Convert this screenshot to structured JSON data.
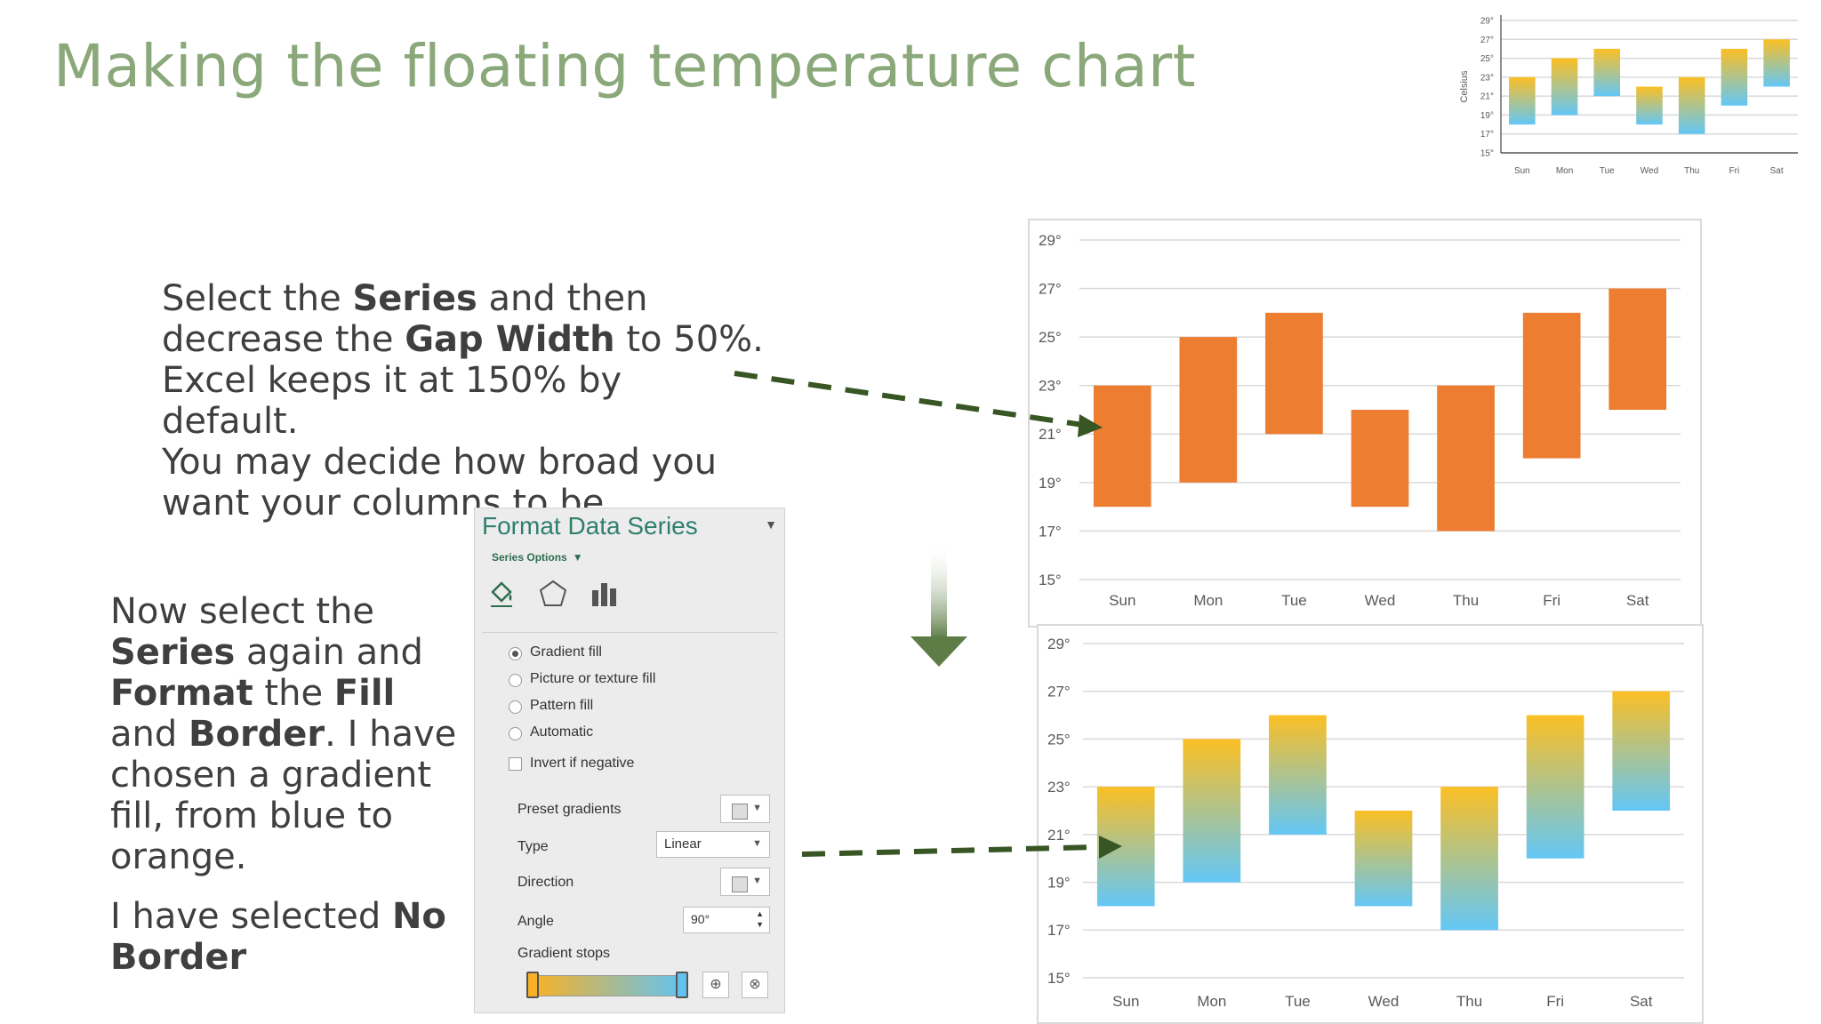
{
  "title": "Making the floating temperature chart",
  "para1": {
    "l1a": "Select the ",
    "l1b": "Series",
    "l1c": " and then",
    "l2a": "decrease the ",
    "l2b": "Gap Width",
    "l2c": " to 50%.",
    "l3": "Excel keeps it at 150% by default.",
    "l4": "You may decide how broad you",
    "l5": "want your columns to be."
  },
  "para2": {
    "l1": "Now select the",
    "l2a": "Series",
    "l2b": " again and",
    "l3a": "Format",
    "l3b": " the ",
    "l3c": "Fill",
    "l4a": "and ",
    "l4b": "Border",
    "l4c": ". I have",
    "l5": "chosen a gradient",
    "l6": "fill, from blue to",
    "l7": "orange."
  },
  "para3": {
    "l1a": "I have selected ",
    "l1b": "No",
    "l2": "Border"
  },
  "panel": {
    "title": "Format Data Series",
    "series_options": "Series Options",
    "fill_options": [
      "Gradient fill",
      "Picture or texture fill",
      "Pattern fill",
      "Automatic"
    ],
    "invert": "Invert if negative",
    "preset": "Preset gradients",
    "type_label": "Type",
    "type_value": "Linear",
    "direction": "Direction",
    "angle_label": "Angle",
    "angle_value": "90°",
    "gradient_stops": "Gradient stops"
  },
  "colors": {
    "title_green": "#8aa879",
    "orange": "#ed7d31",
    "grad_top": "#fbbf24",
    "grad_bottom": "#63c7f6",
    "arrow_green": "#375623"
  },
  "chart_data": [
    {
      "type": "bar",
      "subtype": "floating",
      "ylabel": "Celsius",
      "categories": [
        "Sun",
        "Mon",
        "Tue",
        "Wed",
        "Thu",
        "Fri",
        "Sat"
      ],
      "low": [
        18,
        19,
        21,
        18,
        17,
        20,
        22
      ],
      "high": [
        23,
        25,
        26,
        22,
        23,
        26,
        27
      ],
      "yticks": [
        "15°",
        "17°",
        "19°",
        "21°",
        "23°",
        "25°",
        "27°",
        "29°"
      ],
      "ylim": [
        15,
        29
      ],
      "fill": "gradient"
    },
    {
      "type": "bar",
      "subtype": "floating",
      "categories": [
        "Sun",
        "Mon",
        "Tue",
        "Wed",
        "Thu",
        "Fri",
        "Sat"
      ],
      "low": [
        18,
        19,
        21,
        18,
        17,
        20,
        22
      ],
      "high": [
        23,
        25,
        26,
        22,
        23,
        26,
        27
      ],
      "yticks": [
        "15°",
        "17°",
        "19°",
        "21°",
        "23°",
        "25°",
        "27°",
        "29°"
      ],
      "ylim": [
        15,
        29
      ],
      "fill": "orange"
    },
    {
      "type": "bar",
      "subtype": "floating",
      "categories": [
        "Sun",
        "Mon",
        "Tue",
        "Wed",
        "Thu",
        "Fri",
        "Sat"
      ],
      "low": [
        18,
        19,
        21,
        18,
        17,
        20,
        22
      ],
      "high": [
        23,
        25,
        26,
        22,
        23,
        26,
        27
      ],
      "yticks": [
        "15°",
        "17°",
        "19°",
        "21°",
        "23°",
        "25°",
        "27°",
        "29°"
      ],
      "ylim": [
        15,
        29
      ],
      "fill": "gradient"
    }
  ]
}
